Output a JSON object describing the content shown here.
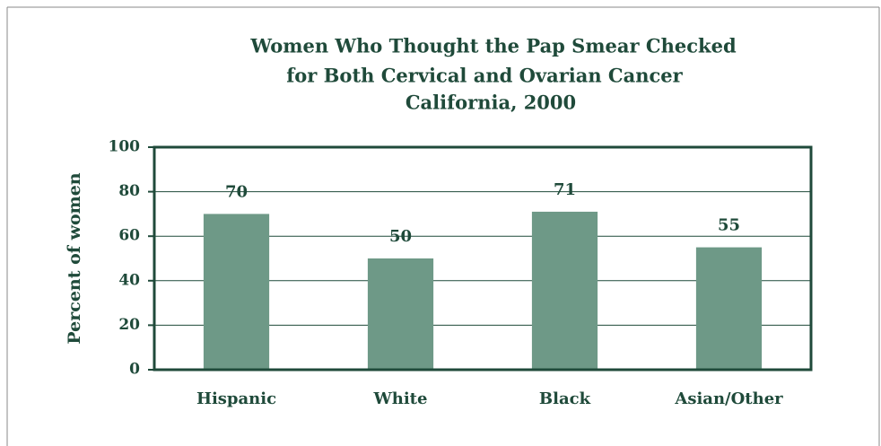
{
  "chart_data": {
    "type": "bar",
    "title": [
      "Women Who Thought the Pap Smear Checked",
      "for Both Cervical and Ovarian Cancer",
      "California, 2000"
    ],
    "y_label": "Percent of women",
    "categories": [
      "Hispanic",
      "White",
      "Black",
      "Asian/Other"
    ],
    "values": [
      70,
      50,
      71,
      55
    ],
    "color": "#6e9987",
    "ylim": [
      0,
      100
    ],
    "yticks": [
      0,
      20,
      40,
      60,
      80,
      100
    ],
    "grid": true
  }
}
